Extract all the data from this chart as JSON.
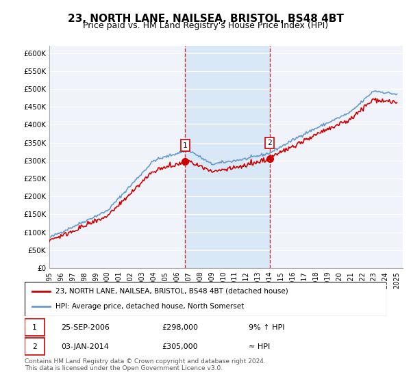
{
  "title": "23, NORTH LANE, NAILSEA, BRISTOL, BS48 4BT",
  "subtitle": "Price paid vs. HM Land Registry's House Price Index (HPI)",
  "title_fontsize": 11,
  "subtitle_fontsize": 9,
  "ylabel_ticks": [
    "£0",
    "£50K",
    "£100K",
    "£150K",
    "£200K",
    "£250K",
    "£300K",
    "£350K",
    "£400K",
    "£450K",
    "£500K",
    "£550K",
    "£600K"
  ],
  "ytick_values": [
    0,
    50000,
    100000,
    150000,
    200000,
    250000,
    300000,
    350000,
    400000,
    450000,
    500000,
    550000,
    600000
  ],
  "ylim": [
    0,
    620000
  ],
  "xlim_start": 1995.0,
  "xlim_end": 2025.5,
  "background_color": "#ffffff",
  "plot_bg_color": "#f0f4fa",
  "grid_color": "#ffffff",
  "sale1_date": 2006.73,
  "sale1_price": 298000,
  "sale2_date": 2014.01,
  "sale2_price": 305000,
  "sale1_label": "1",
  "sale2_label": "2",
  "hpi_color": "#6699cc",
  "price_color": "#cc0000",
  "shade_start": 2006.73,
  "shade_end": 2014.01,
  "legend_line1": "23, NORTH LANE, NAILSEA, BRISTOL, BS48 4BT (detached house)",
  "legend_line2": "HPI: Average price, detached house, North Somerset",
  "table_row1": [
    "1",
    "25-SEP-2006",
    "£298,000",
    "9% ↑ HPI"
  ],
  "table_row2": [
    "2",
    "03-JAN-2014",
    "£305,000",
    "≈ HPI"
  ],
  "footer": "Contains HM Land Registry data © Crown copyright and database right 2024.\nThis data is licensed under the Open Government Licence v3.0.",
  "xticks": [
    1995,
    1996,
    1997,
    1998,
    1999,
    2000,
    2001,
    2002,
    2003,
    2004,
    2005,
    2006,
    2007,
    2008,
    2009,
    2010,
    2011,
    2012,
    2013,
    2014,
    2015,
    2016,
    2017,
    2018,
    2019,
    2020,
    2021,
    2022,
    2023,
    2024,
    2025
  ]
}
